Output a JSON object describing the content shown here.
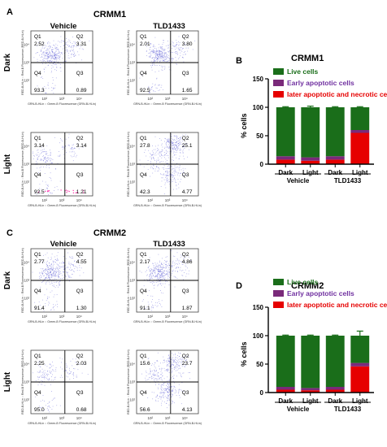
{
  "figure": {
    "panel_letters": [
      "A",
      "B",
      "C",
      "D"
    ],
    "row_labels": [
      "Dark",
      "Light"
    ]
  },
  "colors": {
    "live": "#1a6e1a",
    "early": "#7a2a7a",
    "late": "#e60000",
    "live_text": "#1a6e1a",
    "early_text": "#7030a0",
    "late_text": "#e60000",
    "dot": "#4a4ad0",
    "dot_pink": "#ff33aa"
  },
  "flow_axes": {
    "x_label": "GRN-B-HLin :: Green-B Fluorescence (GRN-B-HLin)",
    "y_label": "RED-B-HLin :: Red-B Fluorescence (RED-B-HLin)",
    "ticks": [
      "10²",
      "10³",
      "10⁴"
    ]
  },
  "flow_panels": [
    {
      "group": "CRMM1",
      "title": "CRMM1",
      "cols": [
        "Vehicle",
        "TLD1433"
      ],
      "plots": [
        {
          "row": "Dark",
          "col": "Vehicle",
          "q": {
            "Q1": "2.52",
            "Q2": "3.31",
            "Q3": "0.89",
            "Q4": "93.3"
          },
          "pop": [
            [
              0.32,
              0.62,
              0.15
            ],
            [
              0.62,
              0.72,
              0.05
            ],
            [
              0.28,
              0.12,
              0.02
            ]
          ]
        },
        {
          "row": "Dark",
          "col": "TLD1433",
          "q": {
            "Q1": "2.01",
            "Q2": "3.80",
            "Q3": "1.65",
            "Q4": "92.5"
          },
          "pop": [
            [
              0.35,
              0.62,
              0.15
            ],
            [
              0.65,
              0.72,
              0.05
            ],
            [
              0.28,
              0.12,
              0.02
            ]
          ]
        },
        {
          "row": "Light",
          "col": "Vehicle",
          "q": {
            "Q1": "3.14",
            "Q2": "3.14",
            "Q3": "1.21",
            "Q4": "92.5"
          },
          "pop": [
            [
              0.2,
              0.58,
              0.06
            ],
            [
              0.62,
              0.75,
              0.03
            ],
            [
              0.25,
              0.12,
              0.02
            ]
          ],
          "pink": true
        },
        {
          "row": "Light",
          "col": "TLD1433",
          "q": {
            "Q1": "27.8",
            "Q2": "25.1",
            "Q3": "4.77",
            "Q4": "42.3"
          },
          "pop": [
            [
              0.6,
              0.8,
              0.12
            ],
            [
              0.55,
              0.35,
              0.08
            ],
            [
              0.3,
              0.6,
              0.05
            ]
          ]
        }
      ]
    },
    {
      "group": "CRMM2",
      "title": "CRMM2",
      "cols": [
        "Vehicle",
        "TLD1433"
      ],
      "plots": [
        {
          "row": "Dark",
          "col": "Vehicle",
          "q": {
            "Q1": "2.77",
            "Q2": "4.55",
            "Q3": "1.30",
            "Q4": "91.4"
          },
          "pop": [
            [
              0.32,
              0.62,
              0.15
            ],
            [
              0.62,
              0.72,
              0.05
            ],
            [
              0.28,
              0.12,
              0.02
            ]
          ]
        },
        {
          "row": "Dark",
          "col": "TLD1433",
          "q": {
            "Q1": "2.17",
            "Q2": "4.86",
            "Q3": "1.87",
            "Q4": "91.1"
          },
          "pop": [
            [
              0.35,
              0.62,
              0.15
            ],
            [
              0.65,
              0.72,
              0.05
            ],
            [
              0.28,
              0.12,
              0.02
            ]
          ]
        },
        {
          "row": "Light",
          "col": "Vehicle",
          "q": {
            "Q1": "2.25",
            "Q2": "2.03",
            "Q3": "0.68",
            "Q4": "95.0"
          },
          "pop": [
            [
              0.22,
              0.62,
              0.05
            ],
            [
              0.62,
              0.72,
              0.03
            ],
            [
              0.25,
              0.12,
              0.02
            ]
          ]
        },
        {
          "row": "Light",
          "col": "TLD1433",
          "q": {
            "Q1": "15.6",
            "Q2": "23.7",
            "Q3": "4.13",
            "Q4": "56.6"
          },
          "pop": [
            [
              0.6,
              0.8,
              0.1
            ],
            [
              0.5,
              0.35,
              0.1
            ],
            [
              0.3,
              0.6,
              0.05
            ]
          ]
        }
      ]
    }
  ],
  "chart_data": [
    {
      "type": "bar",
      "stacked": true,
      "title": "CRMM1",
      "ylabel": "% cells",
      "ylim": [
        0,
        150
      ],
      "yticks": [
        0,
        50,
        100,
        150
      ],
      "categories": [
        "Dark",
        "Light",
        "Dark",
        "Light"
      ],
      "groups": [
        {
          "label": "Vehicle",
          "span": [
            0,
            1
          ]
        },
        {
          "label": "TLD1433",
          "span": [
            2,
            3
          ]
        }
      ],
      "series": [
        {
          "name": "Live cells",
          "color": "live",
          "values": [
            86,
            88,
            86,
            40
          ]
        },
        {
          "name": "Early apoptotic cells",
          "color": "early",
          "values": [
            6,
            6,
            6,
            5
          ]
        },
        {
          "name": "later apoptotic and necrotic cells",
          "color": "late",
          "values": [
            8,
            6,
            8,
            55
          ]
        }
      ],
      "errors": [
        1,
        2,
        1,
        1
      ],
      "legend": "top"
    },
    {
      "type": "bar",
      "stacked": true,
      "title": "CRMM2",
      "ylabel": "% cells",
      "ylim": [
        0,
        150
      ],
      "yticks": [
        0,
        50,
        100,
        150
      ],
      "categories": [
        "Dark",
        "Light",
        "Dark",
        "Light"
      ],
      "groups": [
        {
          "label": "Vehicle",
          "span": [
            0,
            1
          ]
        },
        {
          "label": "TLD1433",
          "span": [
            2,
            3
          ]
        }
      ],
      "series": [
        {
          "name": "Live cells",
          "color": "live",
          "values": [
            90,
            92,
            90,
            48
          ]
        },
        {
          "name": "Early apoptotic cells",
          "color": "early",
          "values": [
            5,
            4,
            5,
            6
          ]
        },
        {
          "name": "later apoptotic and necrotic cells",
          "color": "late",
          "values": [
            5,
            4,
            5,
            46
          ]
        }
      ],
      "errors": [
        1,
        1,
        1,
        8
      ],
      "legend": "top"
    }
  ]
}
